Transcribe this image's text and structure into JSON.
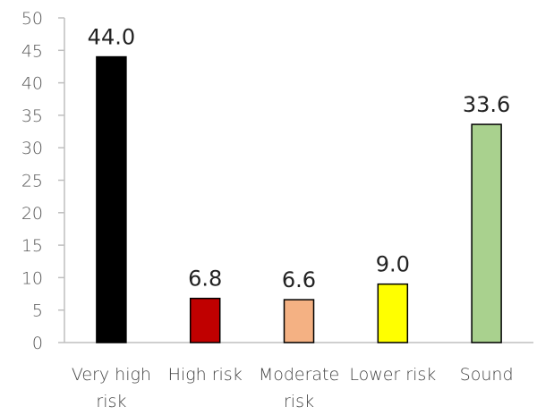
{
  "chart_data": {
    "type": "bar",
    "title": "",
    "xlabel": "",
    "ylabel": "",
    "ylim": [
      0,
      50
    ],
    "yticks": [
      0,
      5,
      10,
      15,
      20,
      25,
      30,
      35,
      40,
      45,
      50
    ],
    "grid": false,
    "categories": [
      [
        "Very high",
        "risk"
      ],
      [
        "High risk"
      ],
      [
        "Moderate",
        "risk"
      ],
      [
        "Lower risk"
      ],
      [
        "Sound"
      ]
    ],
    "values": [
      44.0,
      6.8,
      6.6,
      9.0,
      33.6
    ],
    "value_labels": [
      "44.0",
      "6.8",
      "6.6",
      "9.0",
      "33.6"
    ],
    "colors": [
      "#000000",
      "#c00000",
      "#f4b183",
      "#ffff00",
      "#a9d18e"
    ]
  }
}
